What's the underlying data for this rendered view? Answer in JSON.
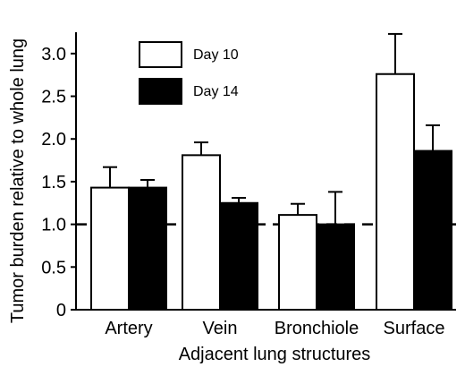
{
  "chart_data": {
    "type": "bar",
    "title": "",
    "xlabel": "Adjacent lung structures",
    "ylabel": "Tumor burden relative to whole lung",
    "categories": [
      "Artery",
      "Vein",
      "Bronchiole",
      "Surface"
    ],
    "series": [
      {
        "name": "Day 10",
        "values": [
          1.43,
          1.81,
          1.11,
          2.76
        ],
        "error_upper": [
          1.67,
          1.96,
          1.24,
          3.23
        ],
        "fill": "#ffffff"
      },
      {
        "name": "Day 14",
        "values": [
          1.43,
          1.25,
          1.0,
          1.86
        ],
        "error_upper": [
          1.52,
          1.31,
          1.38,
          2.16
        ],
        "fill": "#000000"
      }
    ],
    "ylim": [
      0,
      3.25
    ],
    "yticks": [
      "0",
      "0.5",
      "1.0",
      "1.5",
      "2.0",
      "2.5",
      "3.0"
    ],
    "reference_line": 1.0,
    "grid": false,
    "legend_position": "top-left"
  }
}
